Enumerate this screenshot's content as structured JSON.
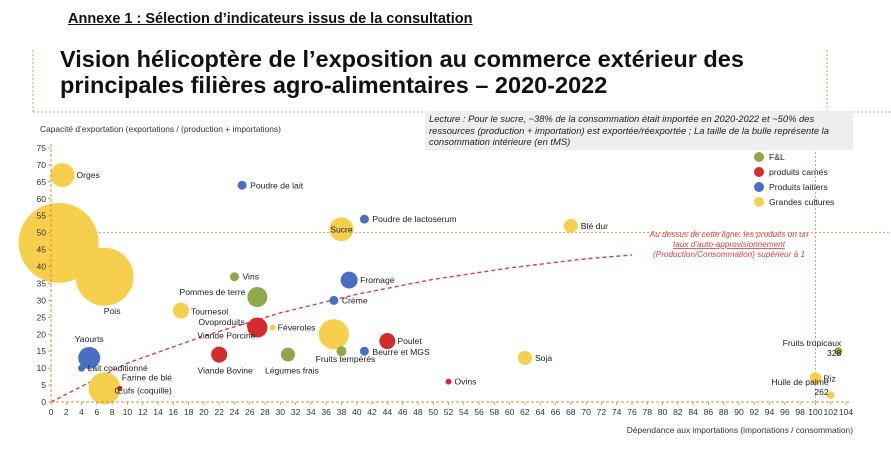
{
  "header": {
    "annex_title": "Annexe 1 : Sélection d’indicateurs issus de la consultation",
    "main_title": "Vision hélicoptère de l’exposition au commerce extérieur des principales filières agro-alimentaires – 2020-2022"
  },
  "reading_note": "Lecture : Pour le sucre, ~38% de la consommation était importée en 2020-2022 et ~50% des ressources (production + importation) est exportée/réexportée ; La taille de la bulle représente la consommation intérieure (en tMS)",
  "colors": {
    "fl": "#8fa84a",
    "meat": "#d42c2c",
    "dairy": "#4a6ec2",
    "crops": "#f6d04d",
    "trend": "#d94141",
    "axis": "#e08a3a"
  },
  "chart_data": {
    "type": "scatter",
    "bubble": true,
    "xlabel": "Dépendance aux importations (importations / consommation)",
    "ylabel": "Capacité d’exportation (exportations / (production + importations)",
    "xlim": [
      0,
      104
    ],
    "ylim": [
      0,
      75
    ],
    "x_ticks": [
      0,
      2,
      4,
      6,
      8,
      10,
      12,
      14,
      16,
      18,
      20,
      22,
      24,
      26,
      28,
      30,
      32,
      34,
      36,
      38,
      40,
      42,
      44,
      46,
      48,
      50,
      52,
      54,
      56,
      58,
      60,
      62,
      64,
      66,
      68,
      70,
      72,
      74,
      76,
      78,
      80,
      82,
      84,
      86,
      88,
      90,
      92,
      94,
      96,
      98,
      100,
      102,
      104
    ],
    "y_ticks": [
      0,
      5,
      10,
      15,
      20,
      25,
      30,
      35,
      40,
      45,
      50,
      55,
      60,
      65,
      70,
      75
    ],
    "legend": {
      "position": "top-right",
      "entries": [
        {
          "key": "fl",
          "label": "F&L"
        },
        {
          "key": "meat",
          "label": "produits carnés"
        },
        {
          "key": "dairy",
          "label": "Produits laitiers"
        },
        {
          "key": "crops",
          "label": "Grandes cultures"
        }
      ]
    },
    "trend_annotation": "Au dessus de cette ligne, les produits on un taux d’auto-approvisionnement (Production/Consommation) supérieur à 1",
    "points": [
      {
        "label": "Orges",
        "x": 1.5,
        "y": 67,
        "size": 12,
        "group": "crops"
      },
      {
        "label": "",
        "x": 1,
        "y": 47,
        "size": 40,
        "group": "crops"
      },
      {
        "label": "Poudre de lait",
        "x": 25,
        "y": 64,
        "size": 4.5,
        "group": "dairy"
      },
      {
        "label": "Poudre de lactoserum",
        "x": 41,
        "y": 54,
        "size": 4.5,
        "group": "dairy"
      },
      {
        "label": "Sucre",
        "x": 38,
        "y": 51,
        "size": 12,
        "group": "crops"
      },
      {
        "label": "Blé dur",
        "x": 68,
        "y": 52,
        "size": 7,
        "group": "crops"
      },
      {
        "label": "Vins",
        "x": 24,
        "y": 37,
        "size": 4.5,
        "group": "fl"
      },
      {
        "label": "",
        "x": 7,
        "y": 37,
        "size": 29,
        "group": "crops"
      },
      {
        "label": "Fromage",
        "x": 39,
        "y": 36,
        "size": 8.5,
        "group": "dairy"
      },
      {
        "label": "Pois",
        "x": 8,
        "y": 31,
        "size": 4.5,
        "group": "crops"
      },
      {
        "label": "Pommes de terre",
        "x": 27,
        "y": 31,
        "size": 10,
        "group": "fl"
      },
      {
        "label": "Crème",
        "x": 37,
        "y": 30,
        "size": 4.5,
        "group": "dairy"
      },
      {
        "label": "Tournesol",
        "x": 17,
        "y": 27,
        "size": 8,
        "group": "crops"
      },
      {
        "label": "Ovoproduits",
        "x": 26,
        "y": 22.5,
        "size": 3,
        "group": "meat"
      },
      {
        "label": "Viande Porcine",
        "x": 27,
        "y": 22,
        "size": 10,
        "group": "meat"
      },
      {
        "label": "Féveroles",
        "x": 29,
        "y": 22,
        "size": 3,
        "group": "crops"
      },
      {
        "label": "",
        "x": 37,
        "y": 20,
        "size": 15,
        "group": "crops"
      },
      {
        "label": "Poulet",
        "x": 44,
        "y": 18,
        "size": 8,
        "group": "meat"
      },
      {
        "label": "Yaourts",
        "x": 5,
        "y": 13,
        "size": 11,
        "group": "dairy"
      },
      {
        "label": "Viande Bovine",
        "x": 22,
        "y": 14,
        "size": 8,
        "group": "meat"
      },
      {
        "label": "Légumes frais",
        "x": 31,
        "y": 14,
        "size": 7,
        "group": "fl"
      },
      {
        "label": "Fruits tempérés",
        "x": 38,
        "y": 15,
        "size": 5,
        "group": "fl"
      },
      {
        "label": "Beurre et MGS",
        "x": 41,
        "y": 15,
        "size": 4.5,
        "group": "dairy"
      },
      {
        "label": "Soja",
        "x": 62,
        "y": 13,
        "size": 7,
        "group": "crops"
      },
      {
        "label": "Fruits tropicaux\n328",
        "x": 103,
        "y": 15,
        "size": 4,
        "group": "fl"
      },
      {
        "label": "Lait conditionné",
        "x": 4,
        "y": 10,
        "size": 3.5,
        "group": "dairy"
      },
      {
        "label": "Riz",
        "x": 100,
        "y": 7,
        "size": 6,
        "group": "crops"
      },
      {
        "label": "Ovins",
        "x": 52,
        "y": 6,
        "size": 3,
        "group": "meat"
      },
      {
        "label": "Farine de blé",
        "x": 9,
        "y": 4,
        "size": 2.5,
        "group": "meat"
      },
      {
        "label": "Œufs (coquille)",
        "x": 7,
        "y": 4,
        "size": 16,
        "group": "crops"
      },
      {
        "label": "Huile de palme\n262",
        "x": 102,
        "y": 2,
        "size": 4,
        "group": "crops"
      }
    ],
    "trend_line": [
      [
        0,
        0
      ],
      [
        10,
        11.5
      ],
      [
        20,
        19.5
      ],
      [
        30,
        26.3
      ],
      [
        40,
        31.8
      ],
      [
        50,
        36.2
      ],
      [
        60,
        39.6
      ],
      [
        70,
        42.3
      ],
      [
        76,
        43.4
      ]
    ]
  }
}
